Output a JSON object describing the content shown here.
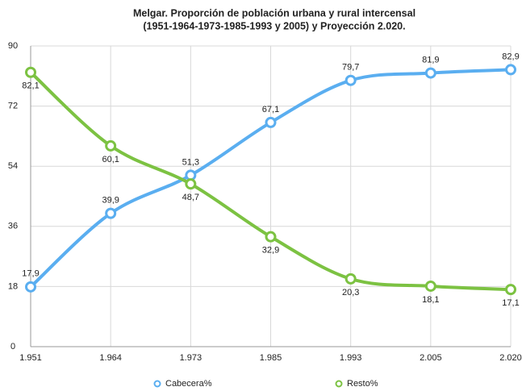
{
  "chart_data": {
    "type": "line",
    "title": [
      "Melgar. Proporción de población urbana y rural intercensal",
      "(1951-1964-1973-1985-1993 y 2005) y Proyección 2.020."
    ],
    "categories": [
      "1.951",
      "1.964",
      "1.973",
      "1.985",
      "1.993",
      "2.005",
      "2.020"
    ],
    "series": [
      {
        "name": "Cabecera%",
        "color": "#5aaef0",
        "values": [
          17.9,
          39.9,
          51.3,
          67.1,
          79.7,
          81.9,
          82.9
        ],
        "value_labels": [
          "17,9",
          "39,9",
          "51,3",
          "67,1",
          "79,7",
          "81,9",
          "82,9"
        ]
      },
      {
        "name": "Resto%",
        "color": "#7cc242",
        "values": [
          82.1,
          60.1,
          48.7,
          32.9,
          20.3,
          18.1,
          17.1
        ],
        "value_labels": [
          "82,1",
          "60,1",
          "48,7",
          "32,9",
          "20,3",
          "18,1",
          "17,1"
        ]
      }
    ],
    "ylim": [
      0,
      90
    ],
    "yticks": [
      0,
      18,
      36,
      54,
      72,
      90
    ],
    "grid": true
  }
}
